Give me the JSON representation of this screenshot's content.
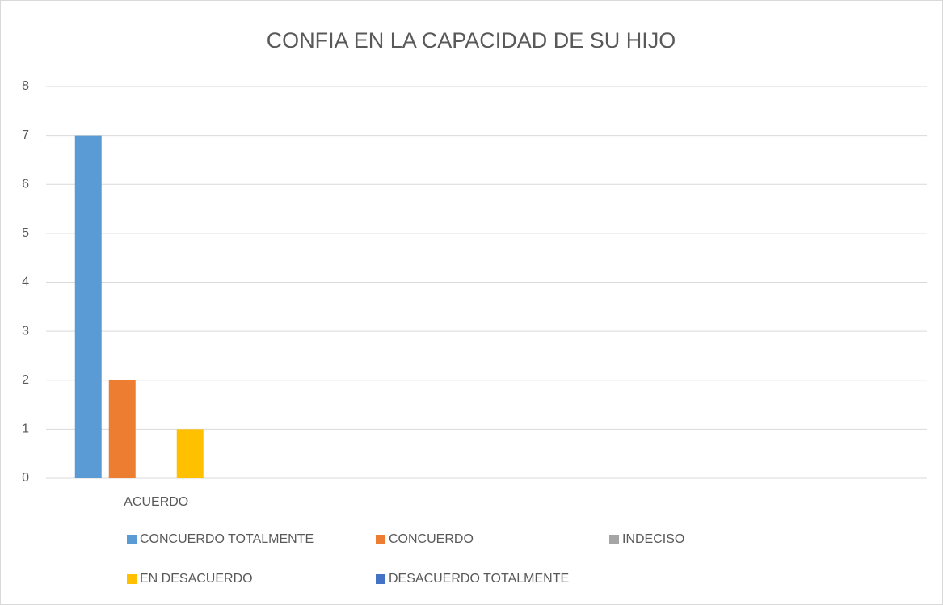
{
  "chart_data": {
    "type": "bar",
    "title": "CONFIA EN LA CAPACIDAD DE SU HIJO",
    "categories": [
      "ACUERDO",
      null,
      null,
      null
    ],
    "series": [
      {
        "name": "CONCUERDO TOTALMENTE",
        "color": "#5b9bd5",
        "values": [
          7,
          null,
          null,
          null
        ]
      },
      {
        "name": "CONCUERDO",
        "color": "#ed7d31",
        "values": [
          2,
          null,
          null,
          null
        ]
      },
      {
        "name": "INDECISO",
        "color": "#a5a5a5",
        "values": [
          0,
          null,
          null,
          null
        ]
      },
      {
        "name": "EN DESACUERDO",
        "color": "#ffc000",
        "values": [
          1,
          null,
          null,
          null
        ]
      },
      {
        "name": "DESACUERDO TOTALMENTE",
        "color": "#4472c4",
        "values": [
          0,
          null,
          null,
          null
        ]
      }
    ],
    "ylim": [
      0,
      8
    ],
    "yticks": [
      0,
      1,
      2,
      3,
      4,
      5,
      6,
      7,
      8
    ],
    "grid": true,
    "legend": "bottom"
  }
}
